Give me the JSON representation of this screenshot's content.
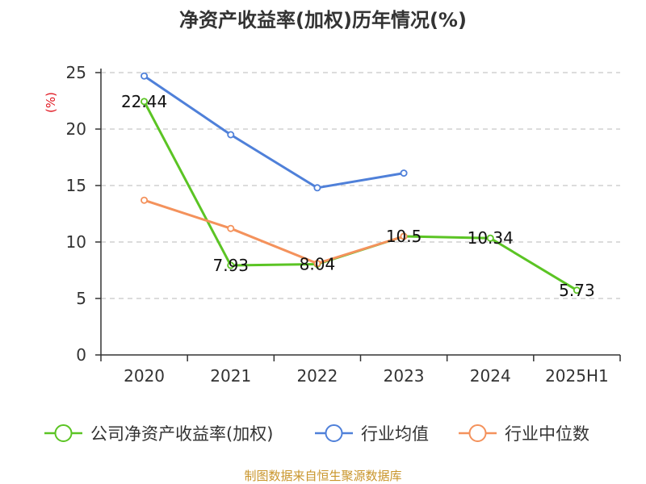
{
  "chart_data": {
    "type": "line",
    "title": "净资产收益率(加权)历年情况(%)",
    "ylabel": "(%)",
    "xlabel": "",
    "categories": [
      "2020",
      "2021",
      "2022",
      "2023",
      "2024",
      "2025H1"
    ],
    "ylim": [
      0,
      25
    ],
    "yticks": [
      0,
      5,
      10,
      15,
      20,
      25
    ],
    "grid": true,
    "legend_position": "bottom",
    "series": [
      {
        "name": "公司净资产收益率(加权)",
        "color": "#5bc424",
        "values": [
          22.44,
          7.93,
          8.04,
          10.5,
          10.34,
          5.73
        ],
        "data_labels": [
          "22.44",
          "7.93",
          "8.04",
          "10.5",
          "10.34",
          "5.73"
        ]
      },
      {
        "name": "行业均值",
        "color": "#4f80d9",
        "values": [
          24.7,
          19.5,
          14.8,
          16.1,
          null,
          null
        ],
        "data_labels": null
      },
      {
        "name": "行业中位数",
        "color": "#f4925c",
        "values": [
          13.7,
          11.2,
          8.1,
          10.5,
          null,
          null
        ],
        "data_labels": null
      }
    ]
  },
  "source": "制图数据来自恒生聚源数据库"
}
